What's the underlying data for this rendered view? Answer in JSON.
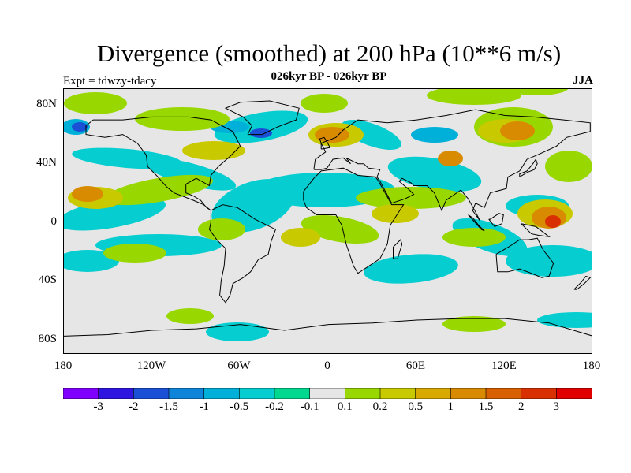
{
  "title": "Divergence (smoothed) at 200 hPa (10**6 m/s)",
  "subtitle": "026kyr BP - 026kyr BP",
  "left_label": "Expt = tdwzy-tdacy",
  "right_label": "JJA",
  "y_ticks": [
    "80N",
    "40N",
    "0",
    "40S",
    "80S"
  ],
  "x_ticks": [
    "180",
    "120W",
    "60W",
    "0",
    "60E",
    "120E",
    "180"
  ],
  "colorbar": {
    "colors": [
      "#7f00ff",
      "#2e16e0",
      "#1a4fd6",
      "#0e85d8",
      "#00b0d8",
      "#05cdd0",
      "#00d890",
      "#e6e6e6",
      "#98d800",
      "#c9c900",
      "#d8aa00",
      "#d88a00",
      "#d86000",
      "#d83000",
      "#e00000"
    ],
    "labels": [
      "-3",
      "-2",
      "-1.5",
      "-1",
      "-0.5",
      "-0.2",
      "-0.1",
      "0.1",
      "0.2",
      "0.5",
      "1",
      "1.5",
      "2",
      "3"
    ]
  },
  "map_colors": {
    "negative": "#05cdd0",
    "neg_strong": "#00b0d8",
    "neg_stronger": "#1a4fd6",
    "pos_weak": "#98d800",
    "pos_mid": "#c9c900",
    "pos_strong": "#d88a00",
    "pos_max": "#d83000",
    "coast": "#000000"
  }
}
